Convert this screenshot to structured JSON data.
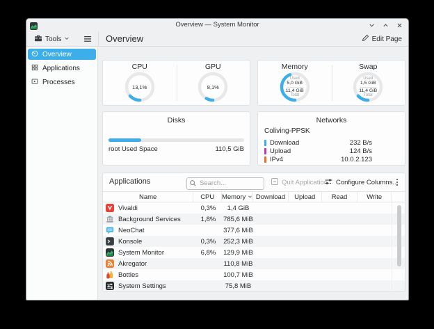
{
  "window": {
    "title": "Overview — System Monitor"
  },
  "toolbar": {
    "tools_label": "Tools",
    "page_title": "Overview",
    "edit_page_label": "Edit Page"
  },
  "sidebar": {
    "items": [
      {
        "label": "Overview"
      },
      {
        "label": "Applications"
      },
      {
        "label": "Processes"
      }
    ]
  },
  "sensors": {
    "cpu": {
      "title": "CPU",
      "value": "13,1%",
      "percent": 13.1
    },
    "gpu": {
      "title": "GPU",
      "value": "8,1%",
      "percent": 8.1
    },
    "memory": {
      "title": "Memory",
      "used_label": "Used",
      "used": "5,0 GiB",
      "total": "11,4 GiB",
      "total_label": "Total",
      "percent": 43.9
    },
    "swap": {
      "title": "Swap",
      "used_label": "Used",
      "used": "1,5 GiB",
      "total": "11,4 GiB",
      "total_label": "Total",
      "percent": 13.2
    }
  },
  "disks": {
    "title": "Disks",
    "label": "root Used Space",
    "value": "110,5 GiB",
    "bar_percent": 24
  },
  "networks": {
    "title": "Networks",
    "interface": "Coliving-PPSK",
    "rows": [
      {
        "label": "Download",
        "value": "232 B/s",
        "color": "#3daee9"
      },
      {
        "label": "Upload",
        "value": "124 B/s",
        "color": "#b83bb8"
      },
      {
        "label": "IPv4",
        "value": "10.0.2.123",
        "color": "#e8702a"
      }
    ]
  },
  "apps": {
    "title": "Applications",
    "search_placeholder": "Search...",
    "quit_label": "Quit Application",
    "configure_label": "Configure Columns...",
    "columns": [
      "Name",
      "CPU",
      "Memory",
      "Download",
      "Upload",
      "Read",
      "Write"
    ],
    "sort_column": "Memory",
    "rows": [
      {
        "name": "Vivaldi",
        "cpu": "0,3%",
        "memory": "1,4 GiB"
      },
      {
        "name": "Background Services",
        "cpu": "1,8%",
        "memory": "785,6 MiB"
      },
      {
        "name": "NeoChat",
        "cpu": "",
        "memory": "377,6 MiB"
      },
      {
        "name": "Konsole",
        "cpu": "0,3%",
        "memory": "252,3 MiB"
      },
      {
        "name": "System Monitor",
        "cpu": "6,8%",
        "memory": "129,9 MiB"
      },
      {
        "name": "Akregator",
        "cpu": "",
        "memory": "110,8 MiB"
      },
      {
        "name": "Bottles",
        "cpu": "",
        "memory": "100,7 MiB"
      },
      {
        "name": "System Settings",
        "cpu": "",
        "memory": "75,8 MiB"
      }
    ]
  },
  "colors": {
    "accent": "#3daee9",
    "upload": "#b83bb8",
    "ipv4": "#e8702a",
    "selection": "#3daee9"
  }
}
